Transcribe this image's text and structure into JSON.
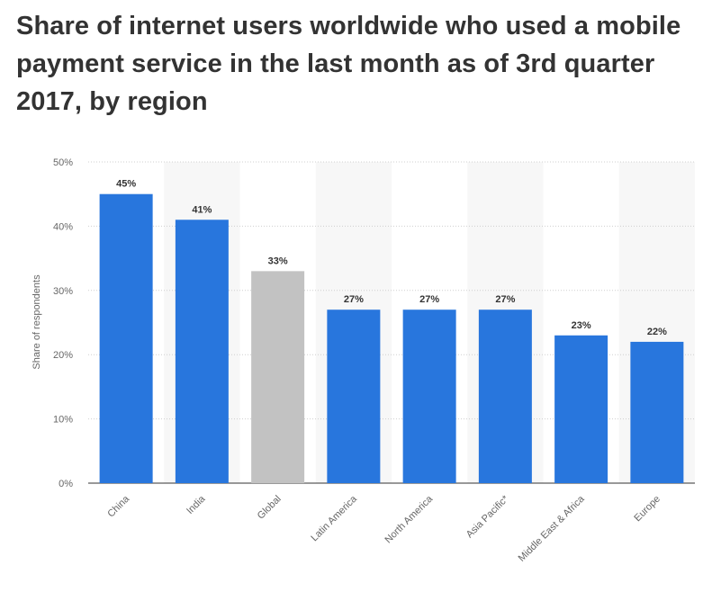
{
  "title": "Share of internet users worldwide who used a mobile payment service in the last month as of 3rd quarter 2017, by region",
  "chart_data": {
    "type": "bar",
    "title": "Share of internet users worldwide who used a mobile payment service in the last month as of 3rd quarter 2017, by region",
    "xlabel": "",
    "ylabel": "Share of respondents",
    "ylim": [
      0,
      50
    ],
    "yticks": [
      0,
      10,
      20,
      30,
      40,
      50
    ],
    "ytick_labels": [
      "0%",
      "10%",
      "20%",
      "30%",
      "40%",
      "50%"
    ],
    "categories": [
      "China",
      "India",
      "Global",
      "Latin America",
      "North America",
      "Asia Pacific*",
      "Middle East & Africa",
      "Europe"
    ],
    "values": [
      45,
      41,
      33,
      27,
      27,
      27,
      23,
      22
    ],
    "data_labels": [
      "45%",
      "41%",
      "33%",
      "27%",
      "27%",
      "27%",
      "23%",
      "22%"
    ],
    "bar_color": "#2876dd",
    "highlight_color": "#c2c2c2",
    "highlight_category": "Global",
    "grid": true,
    "alternating_bands": true,
    "band_color": "#f7f7f7",
    "legend": "none"
  }
}
